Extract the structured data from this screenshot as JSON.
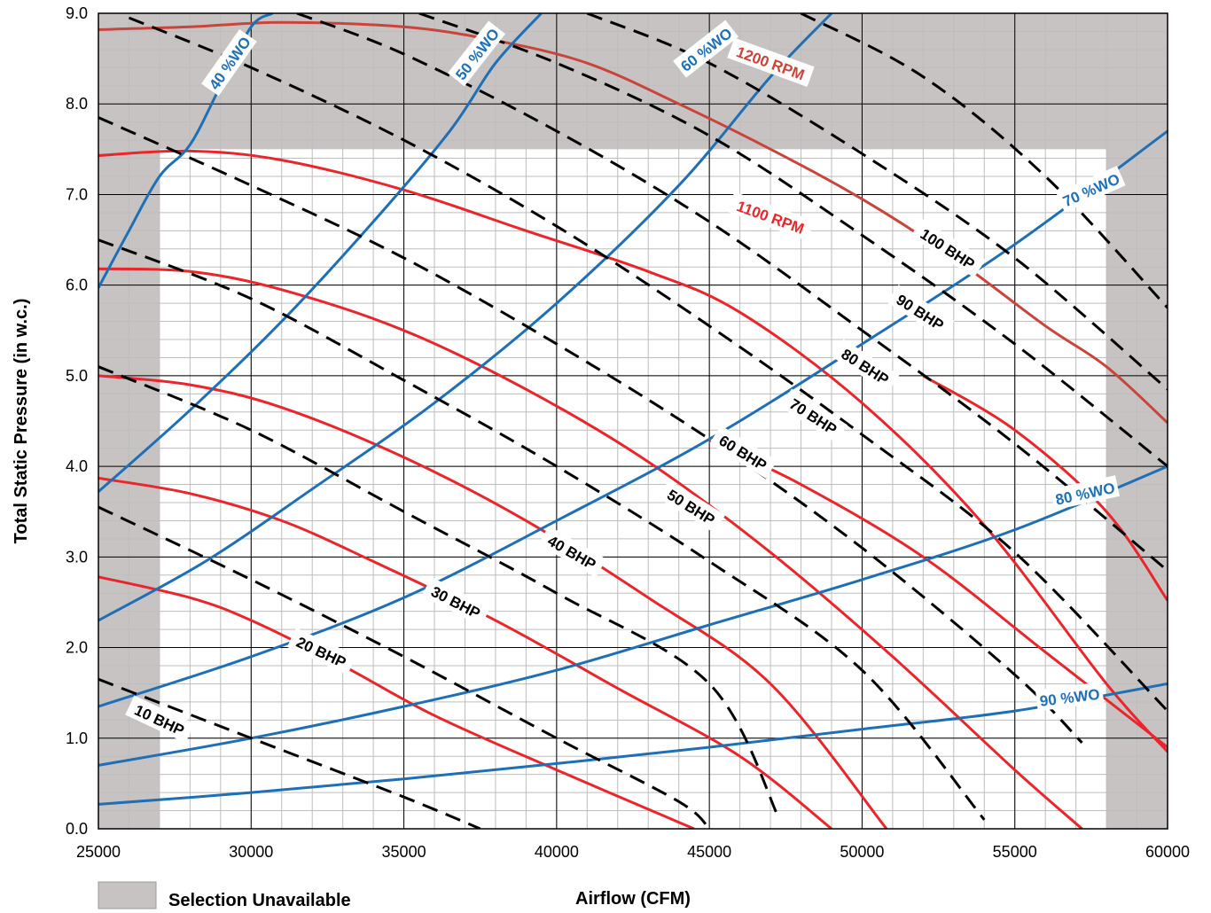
{
  "chart_data": {
    "type": "line",
    "title": "",
    "xlabel": "Airflow (CFM)",
    "ylabel": "Total Static Pressure (in w.c.)",
    "xlim": [
      25000,
      60000
    ],
    "ylim": [
      0,
      9
    ],
    "x_ticks": [
      "25000",
      "30000",
      "35000",
      "40000",
      "45000",
      "50000",
      "55000",
      "60000"
    ],
    "y_ticks": [
      "0.0",
      "1.0",
      "2.0",
      "3.0",
      "4.0",
      "5.0",
      "6.0",
      "7.0",
      "8.0",
      "9.0"
    ],
    "grid": true,
    "legend": {
      "label": "Selection Unavailable",
      "color": "#c8c3c3",
      "placement": "bottom-left"
    },
    "unavailable_regions": [
      {
        "x": [
          25000,
          27000
        ],
        "y": [
          0,
          9
        ]
      },
      {
        "x": [
          58000,
          60000
        ],
        "y": [
          0,
          9
        ]
      },
      {
        "x": [
          25000,
          60000
        ],
        "y": [
          7.5,
          9
        ]
      }
    ],
    "colors": {
      "rpm": "#e8262b",
      "rpm_upper": "#c9453c",
      "wo": "#1f6fb5",
      "bhp": "#000000",
      "unavailable": "#c8c3c3"
    },
    "rpm_curves": [
      {
        "name": "",
        "points": [
          [
            25000,
            2.78
          ],
          [
            28000,
            2.55
          ],
          [
            30000,
            2.3
          ],
          [
            33000,
            1.8
          ],
          [
            36000,
            1.25
          ],
          [
            40000,
            0.65
          ],
          [
            44500,
            0.0
          ]
        ]
      },
      {
        "name": "",
        "points": [
          [
            25000,
            3.87
          ],
          [
            28000,
            3.7
          ],
          [
            31000,
            3.4
          ],
          [
            34000,
            2.95
          ],
          [
            38000,
            2.3
          ],
          [
            42000,
            1.55
          ],
          [
            46000,
            0.8
          ],
          [
            49000,
            0.0
          ]
        ]
      },
      {
        "name": "",
        "points": [
          [
            25000,
            5.0
          ],
          [
            28000,
            4.9
          ],
          [
            31000,
            4.65
          ],
          [
            35000,
            4.1
          ],
          [
            39000,
            3.4
          ],
          [
            43000,
            2.55
          ],
          [
            47000,
            1.6
          ],
          [
            50800,
            0.0
          ]
        ]
      },
      {
        "name": "",
        "points": [
          [
            25000,
            6.18
          ],
          [
            28000,
            6.15
          ],
          [
            31000,
            5.95
          ],
          [
            35000,
            5.5
          ],
          [
            39000,
            4.85
          ],
          [
            43000,
            4.05
          ],
          [
            47000,
            3.05
          ],
          [
            51000,
            1.9
          ],
          [
            55000,
            0.65
          ],
          [
            57200,
            0.0
          ]
        ]
      },
      {
        "name": "1100 RPM",
        "points": [
          [
            25000,
            7.43
          ],
          [
            28000,
            7.48
          ],
          [
            31000,
            7.38
          ],
          [
            35000,
            7.05
          ],
          [
            39000,
            6.6
          ],
          [
            43000,
            6.15
          ],
          [
            46000,
            5.7
          ],
          [
            50000,
            4.7
          ],
          [
            54000,
            3.35
          ],
          [
            58000,
            1.6
          ],
          [
            60000,
            0.85
          ]
        ]
      },
      {
        "name": "",
        "points": [
          [
            45000,
            4.28
          ],
          [
            48000,
            3.8
          ],
          [
            52000,
            3.0
          ],
          [
            56000,
            1.95
          ],
          [
            60000,
            0.9
          ]
        ]
      },
      {
        "name": "",
        "points": [
          [
            52000,
            5.0
          ],
          [
            55000,
            4.4
          ],
          [
            58000,
            3.5
          ],
          [
            60000,
            2.52
          ]
        ]
      },
      {
        "name": "1200 RPM",
        "points": [
          [
            25000,
            8.82
          ],
          [
            28000,
            8.85
          ],
          [
            31000,
            8.9
          ],
          [
            35000,
            8.85
          ],
          [
            38000,
            8.7
          ],
          [
            41000,
            8.45
          ],
          [
            44000,
            8.0
          ],
          [
            47000,
            7.5
          ],
          [
            50000,
            6.95
          ],
          [
            53000,
            6.3
          ],
          [
            56000,
            5.55
          ],
          [
            58000,
            5.1
          ],
          [
            60000,
            4.48
          ]
        ]
      }
    ],
    "system_curves": [
      {
        "name": "40 %WO",
        "points": [
          [
            25000,
            5.97
          ],
          [
            26000,
            6.6
          ],
          [
            27000,
            7.2
          ],
          [
            28000,
            7.55
          ],
          [
            29000,
            8.2
          ],
          [
            30000,
            8.85
          ],
          [
            30700,
            9.0
          ]
        ]
      },
      {
        "name": "50 %WO",
        "points": [
          [
            25000,
            3.72
          ],
          [
            28000,
            4.62
          ],
          [
            31000,
            5.6
          ],
          [
            34000,
            6.7
          ],
          [
            36500,
            7.7
          ],
          [
            38000,
            8.45
          ],
          [
            39500,
            9.0
          ]
        ]
      },
      {
        "name": "60 %WO",
        "points": [
          [
            25000,
            2.3
          ],
          [
            28500,
            2.95
          ],
          [
            32000,
            3.75
          ],
          [
            36000,
            4.7
          ],
          [
            40000,
            5.8
          ],
          [
            44000,
            7.1
          ],
          [
            47000,
            8.3
          ],
          [
            49000,
            9.0
          ]
        ]
      },
      {
        "name": "70 %WO",
        "points": [
          [
            25000,
            1.35
          ],
          [
            30000,
            1.9
          ],
          [
            35000,
            2.55
          ],
          [
            40000,
            3.4
          ],
          [
            45000,
            4.3
          ],
          [
            50000,
            5.35
          ],
          [
            55000,
            6.45
          ],
          [
            60000,
            7.7
          ]
        ]
      },
      {
        "name": "80 %WO",
        "points": [
          [
            25000,
            0.7
          ],
          [
            30000,
            1.0
          ],
          [
            35000,
            1.35
          ],
          [
            40000,
            1.75
          ],
          [
            45000,
            2.25
          ],
          [
            50000,
            2.75
          ],
          [
            55000,
            3.3
          ],
          [
            60000,
            4.0
          ]
        ]
      },
      {
        "name": "90 %WO",
        "points": [
          [
            25000,
            0.27
          ],
          [
            30000,
            0.4
          ],
          [
            35000,
            0.55
          ],
          [
            40000,
            0.72
          ],
          [
            45000,
            0.9
          ],
          [
            50000,
            1.1
          ],
          [
            55000,
            1.3
          ],
          [
            60000,
            1.6
          ]
        ]
      }
    ],
    "bhp_curves": [
      {
        "name": "10 BHP",
        "points": [
          [
            25000,
            1.65
          ],
          [
            30000,
            1.0
          ],
          [
            35000,
            0.35
          ],
          [
            37500,
            0.0
          ]
        ]
      },
      {
        "name": "20 BHP",
        "points": [
          [
            25000,
            3.55
          ],
          [
            30000,
            2.75
          ],
          [
            35000,
            1.9
          ],
          [
            40000,
            1.0
          ],
          [
            44000,
            0.3
          ],
          [
            45000,
            0.0
          ]
        ]
      },
      {
        "name": "30 BHP",
        "points": [
          [
            25000,
            5.1
          ],
          [
            30000,
            4.4
          ],
          [
            35000,
            3.5
          ],
          [
            40000,
            2.6
          ],
          [
            45000,
            1.6
          ],
          [
            47300,
            0.1
          ]
        ]
      },
      {
        "name": "40 BHP",
        "points": [
          [
            25000,
            6.5
          ],
          [
            30000,
            5.85
          ],
          [
            35000,
            4.95
          ],
          [
            40000,
            4.0
          ],
          [
            45000,
            2.95
          ],
          [
            50000,
            1.75
          ],
          [
            54000,
            0.1
          ]
        ]
      },
      {
        "name": "50 BHP",
        "points": [
          [
            25000,
            7.85
          ],
          [
            30000,
            7.1
          ],
          [
            35000,
            6.3
          ],
          [
            40000,
            5.35
          ],
          [
            45000,
            4.3
          ],
          [
            50000,
            3.1
          ],
          [
            55000,
            1.7
          ],
          [
            57200,
            0.95
          ]
        ]
      },
      {
        "name": "60 BHP",
        "points": [
          [
            26000,
            8.95
          ],
          [
            30000,
            8.4
          ],
          [
            35000,
            7.6
          ],
          [
            40000,
            6.65
          ],
          [
            45000,
            5.55
          ],
          [
            50000,
            4.35
          ],
          [
            55000,
            3.05
          ],
          [
            60000,
            1.3
          ]
        ]
      },
      {
        "name": "70 BHP",
        "points": [
          [
            31500,
            9.0
          ],
          [
            35000,
            8.55
          ],
          [
            40000,
            7.7
          ],
          [
            45000,
            6.7
          ],
          [
            50000,
            5.5
          ],
          [
            55000,
            4.25
          ],
          [
            60000,
            2.85
          ]
        ]
      },
      {
        "name": "80 BHP",
        "points": [
          [
            35500,
            9.0
          ],
          [
            40000,
            8.45
          ],
          [
            45000,
            7.65
          ],
          [
            50000,
            6.55
          ],
          [
            55000,
            5.35
          ],
          [
            60000,
            4.0
          ]
        ]
      },
      {
        "name": "90 BHP",
        "points": [
          [
            41000,
            9.0
          ],
          [
            45000,
            8.45
          ],
          [
            50000,
            7.45
          ],
          [
            55000,
            6.3
          ],
          [
            60000,
            4.85
          ]
        ]
      },
      {
        "name": "100 BHP",
        "points": [
          [
            48000,
            9.0
          ],
          [
            52000,
            8.3
          ],
          [
            56000,
            7.2
          ],
          [
            60000,
            5.75
          ]
        ]
      }
    ]
  }
}
